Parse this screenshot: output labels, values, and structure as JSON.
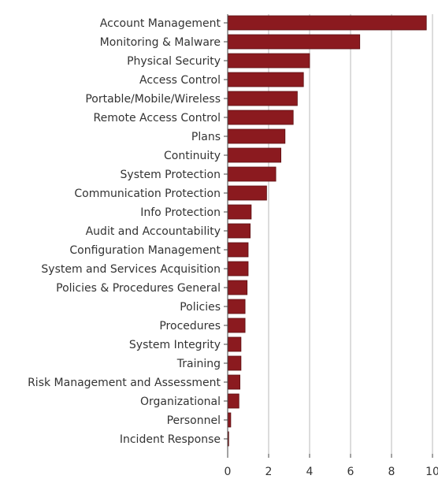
{
  "chart_data": {
    "type": "bar",
    "orientation": "horizontal",
    "categories": [
      "Account Management",
      "Monitoring & Malware",
      "Physical Security",
      "Access Control",
      "Portable/Mobile/Wireless",
      "Remote Access Control",
      "Plans",
      "Continuity",
      "System Protection",
      "Communication Protection",
      "Info Protection",
      "Audit and Accountability",
      "Configuration Management",
      "System and Services Acquisition",
      "Policies & Procedures General",
      "Policies",
      "Procedures",
      "System Integrity",
      "Training",
      "Risk Management and Assessment",
      "Organizational",
      "Personnel",
      "Incident Response"
    ],
    "values": [
      9.7,
      6.45,
      4.0,
      3.7,
      3.4,
      3.2,
      2.8,
      2.6,
      2.35,
      1.9,
      1.15,
      1.1,
      1.0,
      1.0,
      0.95,
      0.85,
      0.85,
      0.65,
      0.65,
      0.6,
      0.55,
      0.15,
      0.05
    ],
    "xlim": [
      0,
      10
    ],
    "xticks": [
      "0",
      "2",
      "4",
      "6",
      "8",
      "10"
    ],
    "grid": "vertical",
    "bar_color": "#8b1a1f",
    "bar_edge_color": "#5c0f12"
  }
}
